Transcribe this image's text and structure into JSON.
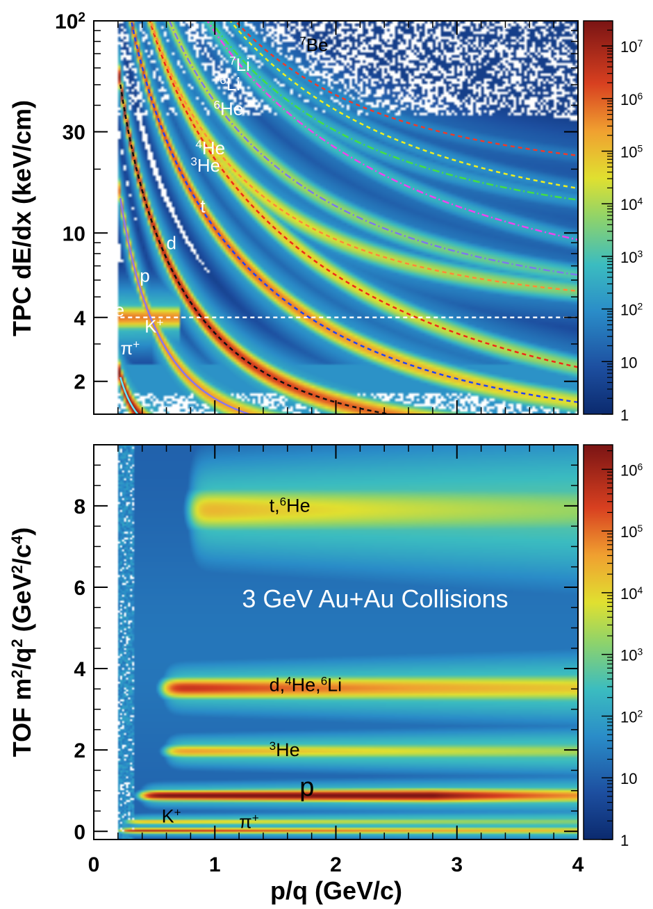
{
  "chart_data": [
    {
      "type": "heatmap",
      "title": "",
      "ylabel": "TPC dE/dx (keV/cm)",
      "xlabel": "",
      "xlim": [
        0,
        4
      ],
      "ylim": [
        1.4,
        100
      ],
      "yscale": "log",
      "y_ticks": [
        {
          "value": 2,
          "label": "2"
        },
        {
          "value": 4,
          "label": "4"
        },
        {
          "value": 10,
          "label": "10"
        },
        {
          "value": 30,
          "label": "30"
        },
        {
          "value": 100,
          "label": "10",
          "sup": "2"
        }
      ],
      "colorbar": {
        "scale": "log",
        "range": [
          1,
          30000000
        ],
        "ticks": [
          {
            "value": 1,
            "label": "1",
            "sup": ""
          },
          {
            "value": 10,
            "label": "10",
            "sup": ""
          },
          {
            "value": 100,
            "label": "10",
            "sup": "2"
          },
          {
            "value": 1000,
            "label": "10",
            "sup": "3"
          },
          {
            "value": 10000,
            "label": "10",
            "sup": "4"
          },
          {
            "value": 100000,
            "label": "10",
            "sup": "5"
          },
          {
            "value": 1000000,
            "label": "10",
            "sup": "6"
          },
          {
            "value": 10000000,
            "label": "10",
            "sup": "7"
          }
        ]
      },
      "bands": [
        {
          "name": "e",
          "k": 0,
          "c": 4.0
        },
        {
          "name": "pi",
          "m": 0.14,
          "zz": 1,
          "k": 2.7,
          "c": 0
        },
        {
          "name": "K",
          "m": 0.494,
          "zz": 1,
          "k": 2.7,
          "c": 0
        },
        {
          "name": "p",
          "m": 0.938,
          "zz": 1,
          "k": 2.7,
          "c": 0
        },
        {
          "name": "d",
          "m": 1.876,
          "zz": 1,
          "k": 2.7,
          "c": 0
        },
        {
          "name": "t",
          "m": 2.809,
          "zz": 1,
          "k": 2.7,
          "c": 0
        },
        {
          "name": "3He",
          "m": 1.404,
          "zz": 4,
          "k": 2.7,
          "c": 0
        },
        {
          "name": "4He",
          "m": 1.864,
          "zz": 4,
          "k": 2.7,
          "c": 0
        },
        {
          "name": "6He",
          "m": 2.8,
          "zz": 4,
          "k": 2.7,
          "c": 0
        },
        {
          "name": "6Li",
          "m": 1.871,
          "zz": 9,
          "k": 2.7,
          "c": 0
        },
        {
          "name": "7Li",
          "m": 2.183,
          "zz": 9,
          "k": 2.7,
          "c": 0
        },
        {
          "name": "7Be",
          "m": 1.63,
          "zz": 16,
          "k": 2.7,
          "c": 0
        }
      ],
      "curves": [
        {
          "name": "e",
          "style": "dashed",
          "color": "#ffffff",
          "k": 0,
          "c": 4.0
        },
        {
          "name": "pi",
          "style": "solid",
          "color": "#66e6ff",
          "m": 0.14,
          "zz": 1,
          "k": 2.7,
          "c": 0
        },
        {
          "name": "K",
          "style": "solid",
          "color": "#8a78e8",
          "m": 0.494,
          "zz": 1,
          "k": 2.7,
          "c": 0
        },
        {
          "name": "p",
          "style": "dashed",
          "color": "#111111",
          "m": 0.938,
          "zz": 1,
          "k": 2.7,
          "c": 0
        },
        {
          "name": "d",
          "style": "dashed",
          "color": "#2244ee",
          "m": 1.876,
          "zz": 1,
          "k": 2.7,
          "c": 0
        },
        {
          "name": "t",
          "style": "dashed",
          "color": "#ee2a1a",
          "m": 2.809,
          "zz": 1,
          "k": 2.7,
          "c": 0
        },
        {
          "name": "3He",
          "style": "dashed",
          "color": "#ff8a3a",
          "m": 1.404,
          "zz": 4,
          "k": 2.7,
          "c": 0
        },
        {
          "name": "4He",
          "style": "dashdot",
          "color": "#7a7aee",
          "m": 1.864,
          "zz": 4,
          "k": 2.7,
          "c": 0
        },
        {
          "name": "6He",
          "style": "dashdot",
          "color": "#ee44ee",
          "m": 2.8,
          "zz": 4,
          "k": 2.7,
          "c": 0
        },
        {
          "name": "6Li",
          "style": "dashdot",
          "color": "#44dd44",
          "m": 1.871,
          "zz": 9,
          "k": 2.7,
          "c": 0
        },
        {
          "name": "7Li",
          "style": "dashed",
          "color": "#eeee22",
          "m": 2.183,
          "zz": 9,
          "k": 2.7,
          "c": 0
        },
        {
          "name": "7Be",
          "style": "dashed",
          "color": "#ee3a2a",
          "m": 1.63,
          "zz": 16,
          "k": 2.7,
          "c": 0
        }
      ],
      "labels": [
        {
          "text": "7Be",
          "sup": "7",
          "main": "Be",
          "color": "#000000",
          "x": 1.7,
          "y": 72
        },
        {
          "text": "7Li",
          "sup": "7",
          "main": "Li",
          "color": "#ffffff",
          "x": 1.12,
          "y": 58
        },
        {
          "text": "6Li",
          "sup": "6",
          "main": "Li",
          "color": "#ffffff",
          "x": 1.04,
          "y": 47
        },
        {
          "text": "6He",
          "sup": "6",
          "main": "He",
          "color": "#ffffff",
          "x": 0.99,
          "y": 36
        },
        {
          "text": "4He",
          "sup": "4",
          "main": "He",
          "color": "#ffffff",
          "x": 0.84,
          "y": 23.5
        },
        {
          "text": "3He",
          "sup": "3",
          "main": "He",
          "color": "#ffffff",
          "x": 0.8,
          "y": 19.5
        },
        {
          "text": "t",
          "sup": "",
          "main": "t",
          "color": "#ffffff",
          "x": 0.88,
          "y": 12.5
        },
        {
          "text": "d",
          "sup": "",
          "main": "d",
          "color": "#ffffff",
          "x": 0.6,
          "y": 8.4
        },
        {
          "text": "p",
          "sup": "",
          "main": "p",
          "color": "#ffffff",
          "x": 0.38,
          "y": 5.9
        },
        {
          "text": "e",
          "sup": "",
          "main": "e",
          "color": "#ffffff",
          "x": 0.17,
          "y": 4.05
        },
        {
          "text": "K+",
          "sup": "+",
          "main": "K",
          "color": "#ffffff",
          "x": 0.42,
          "y": 3.4
        },
        {
          "text": "π+",
          "sup": "+",
          "main": "π",
          "color": "#ffffff",
          "x": 0.22,
          "y": 2.68
        }
      ]
    },
    {
      "type": "heatmap",
      "title": "",
      "ylabel_parts": [
        {
          "t": "TOF m",
          "s": ""
        },
        {
          "t": "2",
          "s": "sup"
        },
        {
          "t": "/q",
          "s": ""
        },
        {
          "t": "2",
          "s": "sup"
        },
        {
          "t": " (GeV",
          "s": ""
        },
        {
          "t": "2",
          "s": "sup"
        },
        {
          "t": "/c",
          "s": ""
        },
        {
          "t": "4",
          "s": "sup"
        },
        {
          "t": ")",
          "s": ""
        }
      ],
      "xlabel": "p/q (GeV/c)",
      "annotation": "3 GeV Au+Au Collisions",
      "xlim": [
        0,
        4
      ],
      "ylim": [
        -0.2,
        9.5
      ],
      "x_ticks": [
        0,
        1,
        2,
        3,
        4
      ],
      "y_ticks": [
        0,
        2,
        4,
        6,
        8
      ],
      "colorbar": {
        "scale": "log",
        "range": [
          1,
          2500000
        ],
        "ticks": [
          {
            "value": 1,
            "label": "1",
            "sup": ""
          },
          {
            "value": 10,
            "label": "10",
            "sup": ""
          },
          {
            "value": 100,
            "label": "10",
            "sup": "2"
          },
          {
            "value": 1000,
            "label": "10",
            "sup": "3"
          },
          {
            "value": 10000,
            "label": "10",
            "sup": "4"
          },
          {
            "value": 100000,
            "label": "10",
            "sup": "5"
          },
          {
            "value": 1000000,
            "label": "10",
            "sup": "6"
          }
        ]
      },
      "bands": [
        {
          "name": "pi+",
          "m2": 0.02,
          "pmin": 0.2,
          "pmax": 4.0,
          "width": 0.05,
          "peak": 0.93
        },
        {
          "name": "K+",
          "m2": 0.24,
          "pmin": 0.25,
          "pmax": 2.2,
          "width": 0.06,
          "peak": 0.7
        },
        {
          "name": "p",
          "m2": 0.88,
          "pmin": 0.38,
          "pmax": 4.0,
          "width": 0.1,
          "peak": 1.0
        },
        {
          "name": "3He",
          "m2": 1.97,
          "pmin": 0.58,
          "pmax": 4.0,
          "width": 0.13,
          "peak": 0.74
        },
        {
          "name": "d,4He,6Li",
          "m2": 3.52,
          "pmin": 0.56,
          "pmax": 4.0,
          "width": 0.2,
          "peak": 0.9
        },
        {
          "name": "t,6He",
          "m2": 7.9,
          "pmin": 0.78,
          "pmax": 4.0,
          "width": 0.42,
          "peak": 0.7
        }
      ],
      "labels": [
        {
          "parts": [
            {
              "t": "t,",
              "s": ""
            },
            {
              "t": "6",
              "s": "sup"
            },
            {
              "t": "He",
              "s": ""
            }
          ],
          "x": 1.45,
          "y": 7.85,
          "color": "#000000",
          "size": 27
        },
        {
          "parts": [
            {
              "t": "d,",
              "s": ""
            },
            {
              "t": "4",
              "s": "sup"
            },
            {
              "t": "He,",
              "s": ""
            },
            {
              "t": "6",
              "s": "sup"
            },
            {
              "t": "Li",
              "s": ""
            }
          ],
          "x": 1.45,
          "y": 3.45,
          "color": "#000000",
          "size": 27
        },
        {
          "parts": [
            {
              "t": "3",
              "s": "sup"
            },
            {
              "t": "He",
              "s": ""
            }
          ],
          "x": 1.45,
          "y": 1.85,
          "color": "#000000",
          "size": 27
        },
        {
          "parts": [
            {
              "t": "p",
              "s": ""
            }
          ],
          "x": 1.7,
          "y": 0.88,
          "color": "#000000",
          "size": 38
        },
        {
          "parts": [
            {
              "t": "K",
              "s": ""
            },
            {
              "t": "+",
              "s": "sup"
            }
          ],
          "x": 0.56,
          "y": 0.22,
          "color": "#000000",
          "size": 27
        },
        {
          "parts": [
            {
              "t": "π",
              "s": ""
            },
            {
              "t": "+",
              "s": "sup"
            }
          ],
          "x": 1.2,
          "y": 0.08,
          "color": "#000000",
          "size": 27
        }
      ]
    }
  ]
}
